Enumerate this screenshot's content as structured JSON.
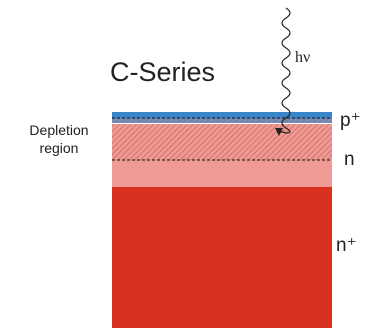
{
  "title": "C-Series",
  "side_label": {
    "line1": "Depletion",
    "line2": "region"
  },
  "photon_label": "hν",
  "layer_labels": {
    "p_plus": "p⁺",
    "n": "n",
    "n_plus": "n⁺"
  },
  "colors": {
    "p_plus_layer": "#3a85c8",
    "depletion_region": "#ef9a93",
    "depletion_hatch": "#cf6f68",
    "n_layer": "#ef9a93",
    "n_plus_layer": "#d9301f",
    "photon_line": "#222222"
  },
  "icons": {
    "photon": "wavy-arrow-icon"
  }
}
